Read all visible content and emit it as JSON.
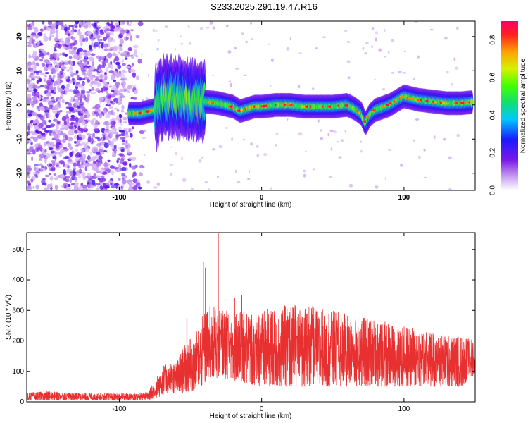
{
  "title": "S233.2025.291.19.47.R16",
  "colors": {
    "line": "#e83030",
    "axis": "#000000",
    "background": "#ffffff"
  },
  "chart_data": [
    {
      "type": "heatmap",
      "name": "spectrogram",
      "xlabel": "Height of straight line (km)",
      "ylabel": "Frequency (Hz)",
      "xlim": [
        -165,
        150
      ],
      "ylim": [
        -25,
        24.5
      ],
      "xticks": [
        {
          "value": -100,
          "label": "-100"
        },
        {
          "value": 0,
          "label": "0"
        },
        {
          "value": 100,
          "label": "100"
        }
      ],
      "yticks": [
        {
          "value": -20,
          "label": "-20"
        },
        {
          "value": -10,
          "label": "-10"
        },
        {
          "value": 0,
          "label": "0"
        },
        {
          "value": 10,
          "label": "10"
        },
        {
          "value": 20,
          "label": "20"
        }
      ],
      "colorbar": {
        "label": "Normalized spectral amplitude",
        "range": [
          0,
          0.9
        ],
        "ticks": [
          {
            "value": 0.0,
            "label": "0.0"
          },
          {
            "value": 0.2,
            "label": "0.2"
          },
          {
            "value": 0.4,
            "label": "0.4"
          },
          {
            "value": 0.6,
            "label": "0.6"
          },
          {
            "value": 0.8,
            "label": "0.8"
          }
        ]
      },
      "ridge": {
        "x": [
          -93,
          -85,
          -75,
          -70,
          -60,
          -50,
          -40,
          -30,
          -20,
          -15,
          -5,
          0,
          10,
          20,
          30,
          40,
          50,
          60,
          65,
          70,
          73,
          76,
          80,
          90,
          100,
          110,
          120,
          130,
          140,
          148
        ],
        "y": [
          -2.5,
          -2.5,
          -1.5,
          2,
          2.5,
          1,
          1,
          0.5,
          -0.5,
          -1.8,
          -0.5,
          -0.5,
          0,
          0,
          -0.5,
          -0.5,
          -0.5,
          0,
          -1,
          -2.5,
          -5.5,
          -3,
          -1.5,
          0,
          2.5,
          1.5,
          1,
          0.5,
          0.5,
          0.8
        ]
      }
    },
    {
      "type": "line",
      "name": "snr",
      "xlabel": "Height of straight line (km)",
      "ylabel": "SNR (10 * v/v)",
      "xlim": [
        -165,
        150
      ],
      "ylim": [
        0,
        555
      ],
      "xticks": [
        {
          "value": -100,
          "label": "-100"
        },
        {
          "value": 0,
          "label": "0"
        },
        {
          "value": 100,
          "label": "100"
        }
      ],
      "yticks": [
        {
          "value": 0,
          "label": "0"
        },
        {
          "value": 100,
          "label": "100"
        },
        {
          "value": 200,
          "label": "200"
        },
        {
          "value": 300,
          "label": "300"
        },
        {
          "value": 400,
          "label": "400"
        },
        {
          "value": 500,
          "label": "500"
        }
      ],
      "envelope": {
        "x": [
          -165,
          -150,
          -130,
          -110,
          -90,
          -80,
          -75,
          -70,
          -60,
          -55,
          -45,
          -40,
          -35,
          -30,
          -20,
          -10,
          0,
          10,
          20,
          30,
          40,
          50,
          60,
          70,
          80,
          90,
          100,
          110,
          120,
          130,
          140,
          150
        ],
        "min": [
          5,
          5,
          5,
          5,
          5,
          5,
          10,
          20,
          30,
          30,
          40,
          60,
          70,
          80,
          70,
          60,
          50,
          50,
          50,
          50,
          50,
          50,
          50,
          50,
          50,
          50,
          50,
          50,
          50,
          50,
          50,
          90
        ],
        "max": [
          30,
          35,
          30,
          28,
          28,
          35,
          70,
          120,
          130,
          180,
          240,
          300,
          320,
          300,
          300,
          300,
          300,
          310,
          320,
          320,
          310,
          300,
          290,
          280,
          270,
          260,
          250,
          240,
          230,
          220,
          215,
          205
        ]
      },
      "peaks": [
        {
          "x": -52.5,
          "y": 275
        },
        {
          "x": -41,
          "y": 460
        },
        {
          "x": -39.5,
          "y": 440
        },
        {
          "x": -30.5,
          "y": 555
        },
        {
          "x": -19,
          "y": 340
        },
        {
          "x": -14,
          "y": 350
        }
      ]
    }
  ]
}
